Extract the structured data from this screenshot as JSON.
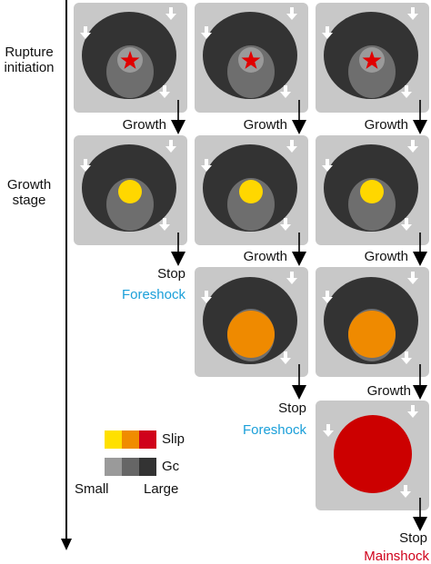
{
  "stages": [
    {
      "label_line1": "Rupture",
      "label_line2": "initiation"
    },
    {
      "label_line1": "Growth",
      "label_line2": "stage"
    }
  ],
  "transitions": {
    "growth": "Growth",
    "stop": "Stop",
    "foreshock": "Foreshock",
    "mainshock": "Mainshock"
  },
  "legend": {
    "slip_label": "Slip",
    "gc_label": "Gc",
    "small_label": "Small",
    "large_label": "Large",
    "slip_colors": [
      "#ffe000",
      "#f08c00",
      "#d0021b"
    ],
    "gc_colors": [
      "#9a9a9a",
      "#666666",
      "#333333"
    ]
  },
  "colors": {
    "panel": "#c8c8c8",
    "dark_ellipse": "#333333",
    "light_ellipse": "#6e6e6e",
    "star_disk": "#9a9a9a",
    "star": "#e10000",
    "small_slip": "#ffd700",
    "medium_slip": "#ef8a00",
    "large_slip": "#cc0000",
    "foreshock_text": "#1a9fd9",
    "mainshock_text": "#d0021b"
  },
  "icons": [
    "star-icon",
    "white-arrow-icon",
    "black-arrow-icon"
  ]
}
